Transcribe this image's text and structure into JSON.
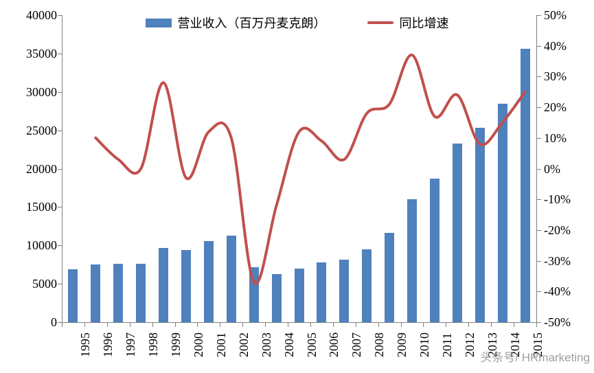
{
  "watermark": "头条号/ HRmarketing",
  "chart_data": {
    "type": "bar",
    "subtype": "combo-bar-line",
    "title": "",
    "grid": false,
    "legend_position": "top",
    "categories": [
      "1995",
      "1996",
      "1997",
      "1998",
      "1999",
      "2000",
      "2001",
      "2002",
      "2003",
      "2004",
      "2005",
      "2006",
      "2007",
      "2008",
      "2009",
      "2010",
      "2011",
      "2012",
      "2013",
      "2014",
      "2015"
    ],
    "series": [
      {
        "name": "营业收入（百万丹麦克朗）",
        "type": "bar",
        "axis": "left",
        "color": "#4F81BD",
        "values": [
          6900,
          7500,
          7600,
          7600,
          9700,
          9400,
          10600,
          11300,
          7200,
          6300,
          7000,
          7800,
          8100,
          9500,
          11600,
          16000,
          18700,
          23300,
          25300,
          28500,
          35600
        ]
      },
      {
        "name": "同比增速",
        "type": "line",
        "axis": "right",
        "color": "#C0504D",
        "values": [
          null,
          10,
          3,
          0,
          28,
          -3,
          12,
          10,
          -37,
          -12,
          12,
          9,
          3,
          18,
          21,
          37,
          17,
          24,
          8,
          15,
          25
        ]
      }
    ],
    "left_axis": {
      "min": 0,
      "max": 40000,
      "step": 5000,
      "tick_labels": [
        "40000",
        "35000",
        "30000",
        "25000",
        "20000",
        "15000",
        "10000",
        "5000",
        "0"
      ]
    },
    "right_axis": {
      "min": -50,
      "max": 50,
      "step": 10,
      "unit": "%",
      "tick_labels": [
        "50%",
        "40%",
        "30%",
        "20%",
        "10%",
        "0%",
        "-10%",
        "-20%",
        "-30%",
        "-40%",
        "-50%"
      ]
    }
  }
}
